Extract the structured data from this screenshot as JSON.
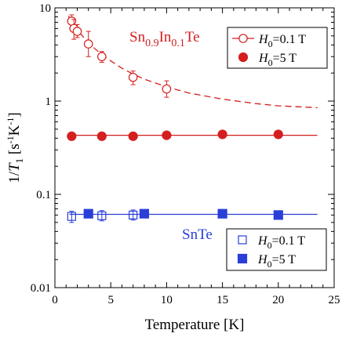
{
  "chart_data": {
    "type": "scatter",
    "xlabel": "Temperature [K]",
    "ylabel_parts": [
      "1/",
      "T",
      "1",
      " [s",
      "-1",
      "K",
      "-1",
      "]"
    ],
    "xlim": [
      0,
      25
    ],
    "ylim": [
      0.01,
      10
    ],
    "yscale": "log",
    "x_ticks": [
      0,
      5,
      10,
      15,
      20,
      25
    ],
    "x_tick_labels": [
      "0",
      "5",
      "10",
      "15",
      "20",
      "25"
    ],
    "y_ticks": [
      0.01,
      0.1,
      1,
      10
    ],
    "y_tick_labels": [
      "0.01",
      "0.1",
      "1",
      "10"
    ],
    "grid": false,
    "annotations": [
      {
        "id": "sn-in-te",
        "parts": [
          {
            "t": "Sn",
            "sub": false
          },
          {
            "t": "0.9",
            "sub": true
          },
          {
            "t": "In",
            "sub": false
          },
          {
            "t": "0.1",
            "sub": true
          },
          {
            "t": "Te",
            "sub": false
          }
        ],
        "color": "#d41f1f"
      },
      {
        "id": "snte",
        "parts": [
          {
            "t": "SnTe",
            "sub": false
          }
        ],
        "color": "#2a3fd8"
      }
    ],
    "legends": [
      {
        "group": "Sn0.9In0.1Te",
        "placement": "top-right",
        "entries": [
          {
            "var": "H",
            "sub": "0",
            "val": "=0.1 T",
            "marker": "open-circle-line",
            "color": "#d41f1f"
          },
          {
            "var": "H",
            "sub": "0",
            "val": "=5 T",
            "marker": "filled-circle",
            "color": "#d41f1f"
          }
        ]
      },
      {
        "group": "SnTe",
        "placement": "bottom-right",
        "entries": [
          {
            "var": "H",
            "sub": "0",
            "val": "=0.1 T",
            "marker": "open-square",
            "color": "#2a3fd8"
          },
          {
            "var": "H",
            "sub": "0",
            "val": "=5 T",
            "marker": "filled-square",
            "color": "#2a3fd8"
          }
        ]
      }
    ],
    "series": [
      {
        "name": "Sn0.9In0.1Te, H0=0.1 T",
        "marker": "circle",
        "fill": "none",
        "color": "#d41f1f",
        "points": [
          {
            "x": 1.5,
            "y": 7.2,
            "ylo": 6.0,
            "yhi": 8.4
          },
          {
            "x": 1.7,
            "y": 6.0,
            "ylo": 4.6,
            "yhi": 7.5
          },
          {
            "x": 2.0,
            "y": 5.6,
            "ylo": 4.8,
            "yhi": 6.6
          },
          {
            "x": 3.0,
            "y": 4.1,
            "ylo": 3.0,
            "yhi": 5.6
          },
          {
            "x": 4.2,
            "y": 3.0,
            "ylo": 2.6,
            "yhi": 3.4
          },
          {
            "x": 7.0,
            "y": 1.8,
            "ylo": 1.5,
            "yhi": 2.1
          },
          {
            "x": 10.0,
            "y": 1.35,
            "ylo": 1.1,
            "yhi": 1.65
          }
        ]
      },
      {
        "name": "Sn0.9In0.1Te, H0=5 T",
        "marker": "circle",
        "fill": "solid",
        "color": "#d41f1f",
        "points": [
          {
            "x": 1.5,
            "y": 0.42
          },
          {
            "x": 4.2,
            "y": 0.42
          },
          {
            "x": 7.0,
            "y": 0.42
          },
          {
            "x": 10.0,
            "y": 0.43
          },
          {
            "x": 15.0,
            "y": 0.44
          },
          {
            "x": 20.0,
            "y": 0.44
          }
        ]
      },
      {
        "name": "SnTe, H0=0.1 T",
        "marker": "square",
        "fill": "none",
        "color": "#2a3fd8",
        "points": [
          {
            "x": 1.5,
            "y": 0.058,
            "ylo": 0.05,
            "yhi": 0.066
          },
          {
            "x": 4.2,
            "y": 0.059,
            "ylo": 0.052,
            "yhi": 0.067
          },
          {
            "x": 7.0,
            "y": 0.06,
            "ylo": 0.053,
            "yhi": 0.068
          }
        ]
      },
      {
        "name": "SnTe, H0=5 T",
        "marker": "square",
        "fill": "solid",
        "color": "#2a3fd8",
        "points": [
          {
            "x": 3.0,
            "y": 0.062
          },
          {
            "x": 8.0,
            "y": 0.062
          },
          {
            "x": 15.0,
            "y": 0.062
          },
          {
            "x": 20.0,
            "y": 0.06
          }
        ]
      }
    ],
    "fit_lines": [
      {
        "for": "Sn0.9In0.1Te, H0=0.1 T",
        "style": "dashed",
        "color": "#d41f1f",
        "x": [
          1.2,
          2,
          3,
          4,
          5,
          6,
          7,
          8,
          10,
          12,
          15,
          18,
          20,
          23.5
        ],
        "y": [
          8.2,
          5.8,
          4.2,
          3.3,
          2.7,
          2.25,
          1.95,
          1.72,
          1.42,
          1.22,
          1.05,
          0.94,
          0.89,
          0.85
        ]
      },
      {
        "for": "Sn0.9In0.1Te, H0=5 T",
        "style": "solid",
        "color": "#d41f1f",
        "x": [
          1.3,
          23.5
        ],
        "y": [
          0.43,
          0.43
        ]
      },
      {
        "for": "SnTe",
        "style": "solid",
        "color": "#2a3fd8",
        "x": [
          1.3,
          23.5
        ],
        "y": [
          0.061,
          0.061
        ]
      }
    ]
  }
}
